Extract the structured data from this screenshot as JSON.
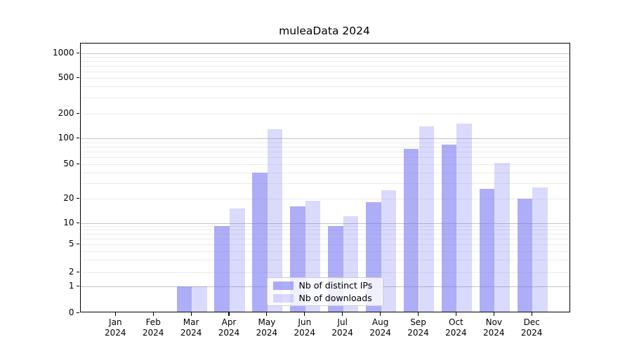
{
  "chart_data": {
    "type": "bar",
    "title": "muleaData 2024",
    "categories": [
      "Jan",
      "Feb",
      "Mar",
      "Apr",
      "May",
      "Jun",
      "Jul",
      "Aug",
      "Sep",
      "Oct",
      "Nov",
      "Dec"
    ],
    "year_label": "2024",
    "series": [
      {
        "name": "Nb of distinct IPs",
        "values": [
          0,
          0,
          1,
          9,
          40,
          16,
          9,
          18,
          75,
          85,
          26,
          20
        ],
        "color": "#7a7af3",
        "alpha": 0.62
      },
      {
        "name": "Nb of downloads",
        "values": [
          0,
          0,
          1,
          15,
          130,
          19,
          12,
          25,
          140,
          150,
          52,
          27
        ],
        "color": "#7a7af3",
        "alpha": 0.28
      }
    ],
    "yticks": [
      0,
      1,
      2,
      5,
      10,
      20,
      50,
      100,
      200,
      500,
      1000
    ],
    "yscale": "symlog",
    "ylim": [
      0,
      1300
    ],
    "xlabel": "",
    "ylabel": "",
    "grid": true,
    "gridline_major_color": "#c3c3c3",
    "gridline_minor_color": "#eaeaea",
    "legend_position": "inside-bottom-center"
  }
}
